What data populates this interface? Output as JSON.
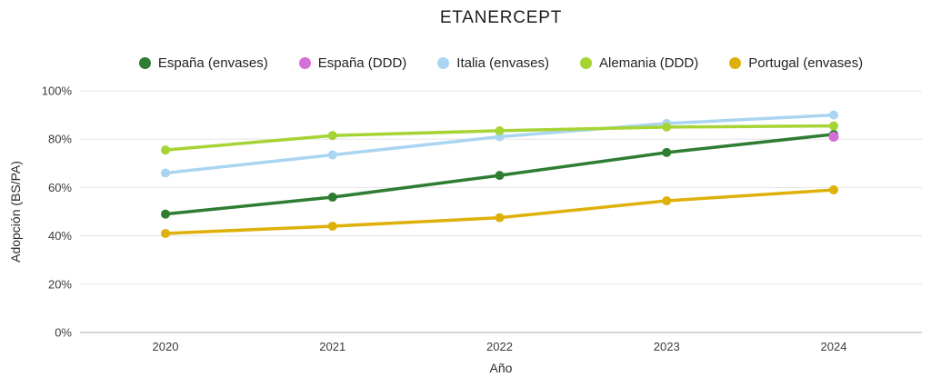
{
  "chart_data": {
    "type": "line",
    "title": "ETANERCEPT",
    "xlabel": "Año",
    "ylabel": "Adopción (BS/PA)",
    "x": [
      2020,
      2021,
      2022,
      2023,
      2024
    ],
    "y_ticks": [
      "0%",
      "20%",
      "40%",
      "60%",
      "80%",
      "100%"
    ],
    "ylim": [
      0,
      100
    ],
    "grid": true,
    "legend_position": "top",
    "background_color": "#ffffff",
    "gridline_color": "#e7e7e7",
    "axisline_color": "#c9c9c9",
    "series": [
      {
        "name": "España (envases)",
        "color": "#2e7d32",
        "values": [
          49,
          56,
          65,
          74.5,
          82
        ]
      },
      {
        "name": "España (DDD)",
        "color": "#d46fd8",
        "values": [
          null,
          null,
          null,
          null,
          81
        ]
      },
      {
        "name": "Italia (envases)",
        "color": "#aad5f0",
        "values": [
          66,
          73.5,
          81,
          86.5,
          90
        ]
      },
      {
        "name": "Alemania (DDD)",
        "color": "#a6d435",
        "values": [
          75.5,
          81.5,
          83.5,
          85,
          85.5
        ]
      },
      {
        "name": "Portugal (envases)",
        "color": "#ddb10a",
        "values": [
          41,
          44,
          47.5,
          54.5,
          59
        ]
      }
    ]
  }
}
